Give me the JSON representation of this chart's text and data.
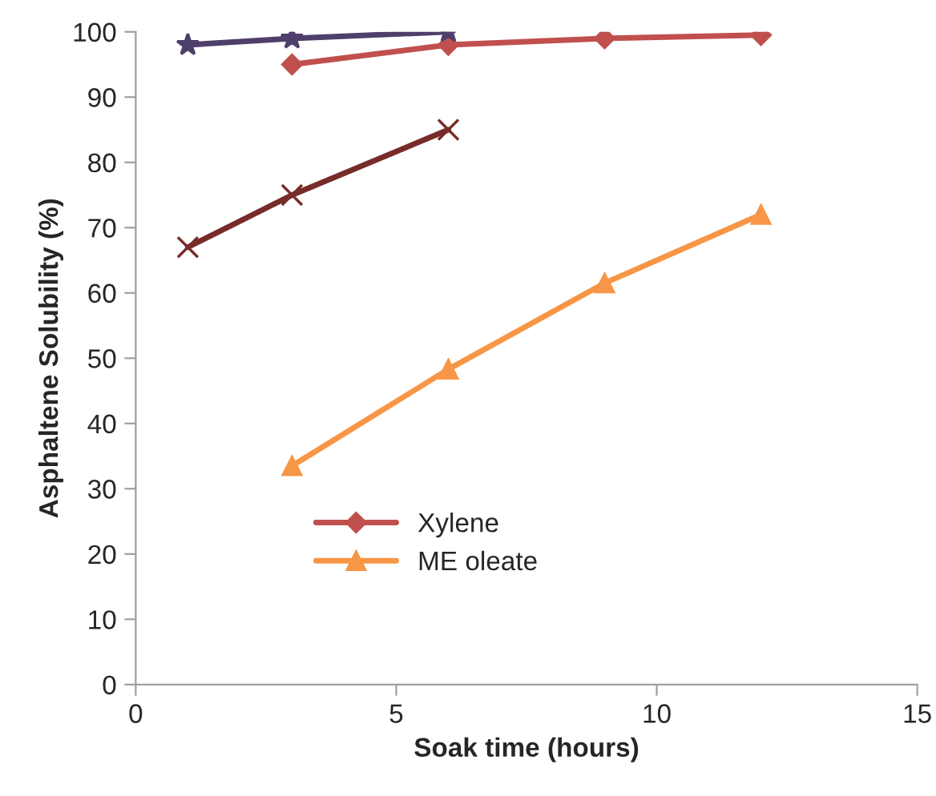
{
  "chart_data": {
    "type": "line",
    "xlabel": "Soak time (hours)",
    "ylabel": "Asphaltene Solubility (%)",
    "xlim": [
      0,
      15
    ],
    "xticks": [
      0,
      5,
      10,
      15
    ],
    "ylim": [
      0,
      100
    ],
    "yticks": [
      0,
      10,
      20,
      30,
      40,
      50,
      60,
      70,
      80,
      90,
      100
    ],
    "grid": false,
    "legend": "bottom left",
    "line_style": "solid",
    "series": [
      {
        "name": "Xylene",
        "color": "#c0504d",
        "marker": "diamond",
        "x": [
          3,
          6,
          9,
          12
        ],
        "values": [
          95,
          98,
          99,
          99.5
        ]
      },
      {
        "name": "ME oleate",
        "color": "#f79646",
        "marker": "triangle",
        "x": [
          3,
          6,
          9,
          12
        ],
        "values": [
          33.5,
          48.3,
          61.5,
          72
        ]
      },
      {
        "color": "#772c2a",
        "marker": "cross",
        "x": [
          1,
          3,
          6
        ],
        "values": [
          67,
          75,
          85
        ]
      },
      {
        "color": "#4f3f6b",
        "marker": "star",
        "x": [
          1,
          3,
          6
        ],
        "values": [
          98,
          99,
          100
        ]
      }
    ]
  }
}
